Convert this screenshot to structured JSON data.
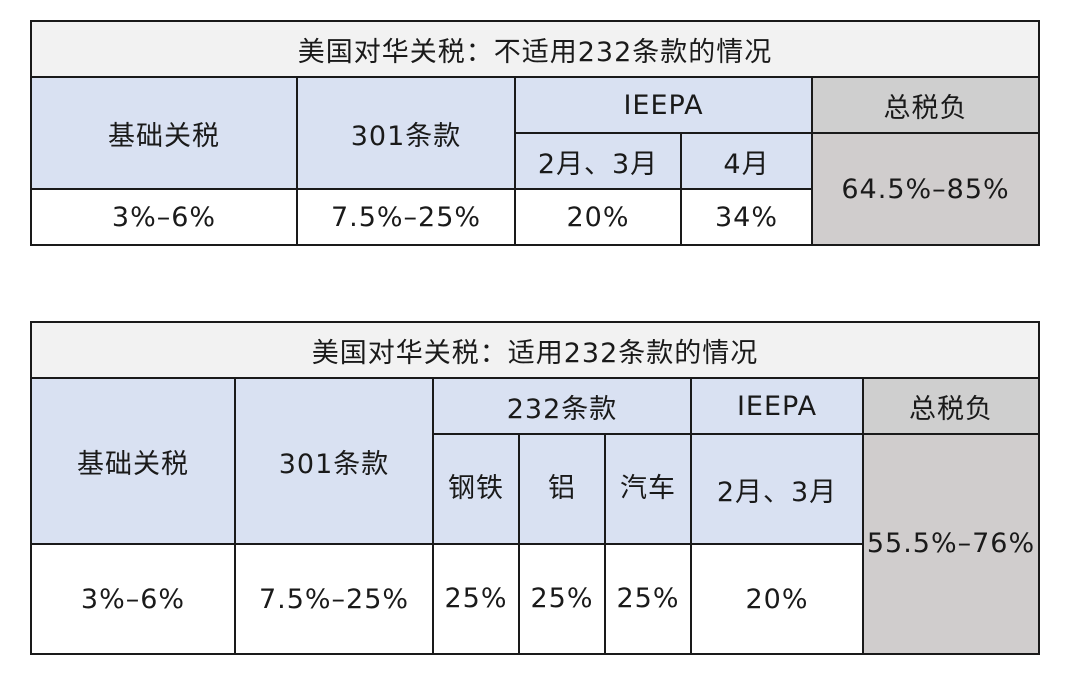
{
  "table1": {
    "title": "美国对华关税：不适用232条款的情况",
    "headers": {
      "base": "基础关税",
      "s301": "301条款",
      "ieepa": "IEEPA",
      "total": "总税负",
      "ieepa_feb_mar": "2月、3月",
      "ieepa_apr": "4月"
    },
    "values": {
      "base": "3%–6%",
      "s301": "7.5%–25%",
      "ieepa_feb_mar": "20%",
      "ieepa_apr": "34%",
      "total": "64.5%–85%"
    }
  },
  "table2": {
    "title": "美国对华关税：适用232条款的情况",
    "headers": {
      "base": "基础关税",
      "s301": "301条款",
      "s232": "232条款",
      "ieepa": "IEEPA",
      "total": "总税负",
      "steel": "钢铁",
      "aluminum": "铝",
      "auto": "汽车",
      "ieepa_feb_mar": "2月、3月"
    },
    "values": {
      "base": "3%–6%",
      "s301": "7.5%–25%",
      "steel": "25%",
      "aluminum": "25%",
      "auto": "25%",
      "ieepa_feb_mar": "20%",
      "total": "55.5%–76%"
    }
  }
}
